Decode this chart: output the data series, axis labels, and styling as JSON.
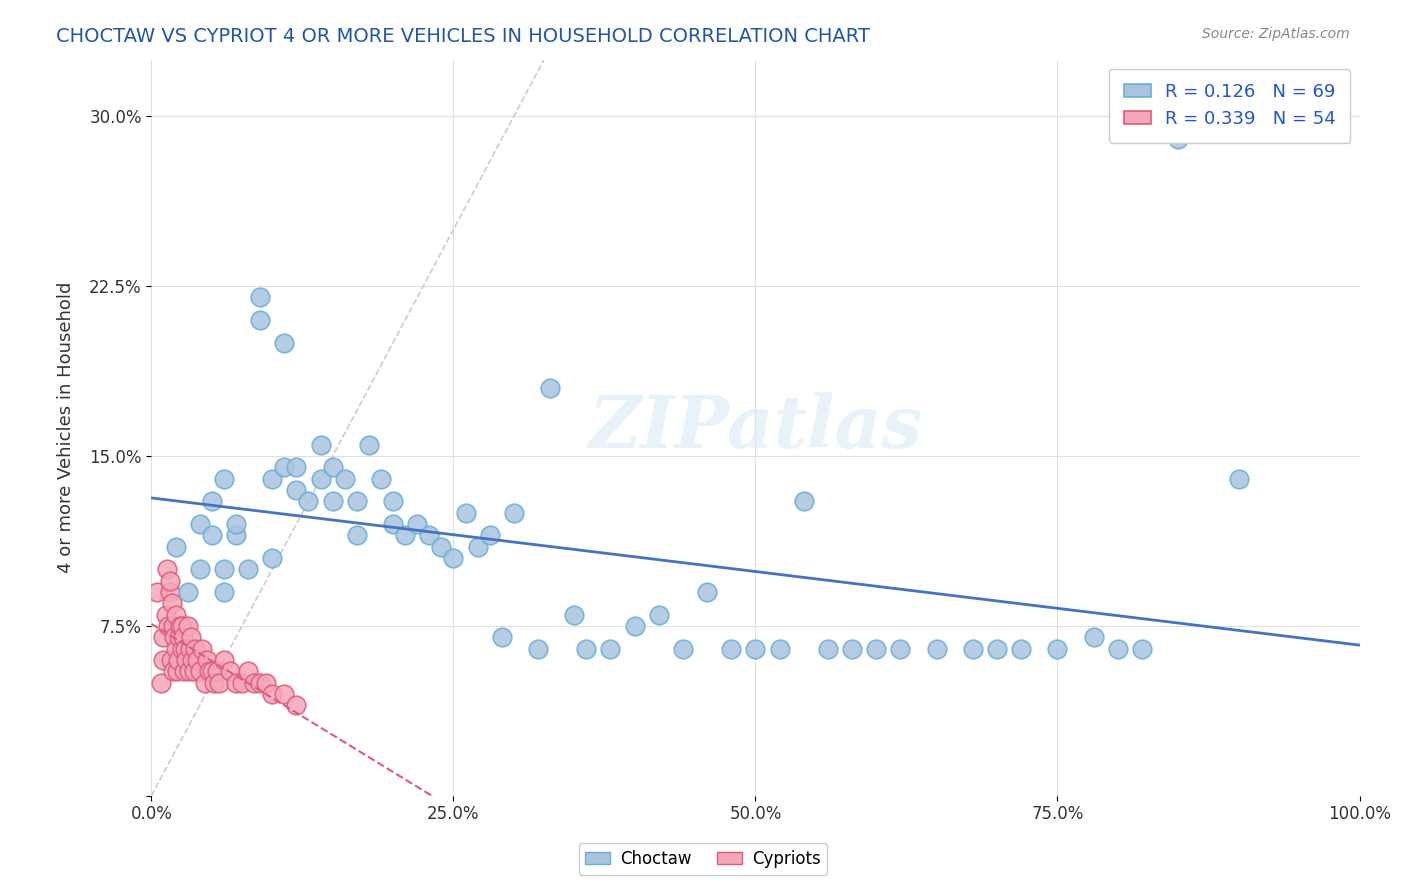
{
  "title": "CHOCTAW VS CYPRIOT 4 OR MORE VEHICLES IN HOUSEHOLD CORRELATION CHART",
  "source_text": "Source: ZipAtlas.com",
  "ylabel": "4 or more Vehicles in Household",
  "xlabel": "",
  "xlim": [
    0.0,
    1.0
  ],
  "ylim": [
    0.0,
    0.325
  ],
  "xticks": [
    0.0,
    0.25,
    0.5,
    0.75,
    1.0
  ],
  "xticklabels": [
    "0.0%",
    "25.0%",
    "50.0%",
    "75.0%",
    "100.0%"
  ],
  "yticks": [
    0.0,
    0.075,
    0.15,
    0.225,
    0.3
  ],
  "yticklabels": [
    "",
    "7.5%",
    "15.0%",
    "22.5%",
    "30.0%"
  ],
  "choctaw_color": "#a8c4e0",
  "cypriot_color": "#f4a7b9",
  "choctaw_edge": "#6aaed6",
  "cypriot_edge": "#e05a7a",
  "trend_choctaw_color": "#4472C4",
  "trend_cypriot_color": "#E05A7A",
  "diagonal_color": "#cccccc",
  "R_choctaw": 0.126,
  "N_choctaw": 69,
  "R_cypriot": 0.339,
  "N_cypriot": 54,
  "watermark": "ZIPatlas",
  "legend_choctaw_label": "Choctaw",
  "legend_cypriot_label": "Cypriots",
  "choctaw_x": [
    0.02,
    0.03,
    0.04,
    0.04,
    0.05,
    0.05,
    0.06,
    0.06,
    0.06,
    0.07,
    0.07,
    0.08,
    0.09,
    0.09,
    0.1,
    0.1,
    0.11,
    0.11,
    0.12,
    0.12,
    0.13,
    0.14,
    0.14,
    0.15,
    0.15,
    0.16,
    0.17,
    0.17,
    0.18,
    0.19,
    0.2,
    0.2,
    0.21,
    0.22,
    0.23,
    0.24,
    0.25,
    0.26,
    0.27,
    0.28,
    0.29,
    0.3,
    0.32,
    0.33,
    0.35,
    0.36,
    0.38,
    0.4,
    0.42,
    0.44,
    0.46,
    0.48,
    0.5,
    0.52,
    0.54,
    0.56,
    0.58,
    0.6,
    0.62,
    0.65,
    0.68,
    0.7,
    0.72,
    0.75,
    0.78,
    0.8,
    0.82,
    0.85,
    0.9
  ],
  "choctaw_y": [
    0.11,
    0.09,
    0.12,
    0.1,
    0.13,
    0.115,
    0.14,
    0.1,
    0.09,
    0.115,
    0.12,
    0.1,
    0.22,
    0.21,
    0.14,
    0.105,
    0.2,
    0.145,
    0.145,
    0.135,
    0.13,
    0.14,
    0.155,
    0.145,
    0.13,
    0.14,
    0.13,
    0.115,
    0.155,
    0.14,
    0.13,
    0.12,
    0.115,
    0.12,
    0.115,
    0.11,
    0.105,
    0.125,
    0.11,
    0.115,
    0.07,
    0.125,
    0.065,
    0.18,
    0.08,
    0.065,
    0.065,
    0.075,
    0.08,
    0.065,
    0.09,
    0.065,
    0.065,
    0.065,
    0.13,
    0.065,
    0.065,
    0.065,
    0.065,
    0.065,
    0.065,
    0.065,
    0.065,
    0.065,
    0.07,
    0.065,
    0.065,
    0.29,
    0.14
  ],
  "cypriot_x": [
    0.005,
    0.008,
    0.01,
    0.01,
    0.012,
    0.013,
    0.014,
    0.015,
    0.015,
    0.016,
    0.017,
    0.018,
    0.018,
    0.019,
    0.02,
    0.02,
    0.021,
    0.022,
    0.023,
    0.024,
    0.025,
    0.025,
    0.026,
    0.027,
    0.028,
    0.029,
    0.03,
    0.031,
    0.032,
    0.033,
    0.034,
    0.035,
    0.036,
    0.038,
    0.04,
    0.042,
    0.044,
    0.046,
    0.048,
    0.05,
    0.052,
    0.054,
    0.056,
    0.06,
    0.065,
    0.07,
    0.075,
    0.08,
    0.085,
    0.09,
    0.095,
    0.1,
    0.11,
    0.12
  ],
  "cypriot_y": [
    0.09,
    0.05,
    0.07,
    0.06,
    0.08,
    0.1,
    0.075,
    0.09,
    0.095,
    0.06,
    0.085,
    0.075,
    0.055,
    0.07,
    0.08,
    0.065,
    0.055,
    0.06,
    0.07,
    0.075,
    0.075,
    0.065,
    0.07,
    0.055,
    0.065,
    0.06,
    0.075,
    0.055,
    0.065,
    0.07,
    0.06,
    0.055,
    0.065,
    0.06,
    0.055,
    0.065,
    0.05,
    0.06,
    0.055,
    0.055,
    0.05,
    0.055,
    0.05,
    0.06,
    0.055,
    0.05,
    0.05,
    0.055,
    0.05,
    0.05,
    0.05,
    0.045,
    0.045,
    0.04
  ]
}
